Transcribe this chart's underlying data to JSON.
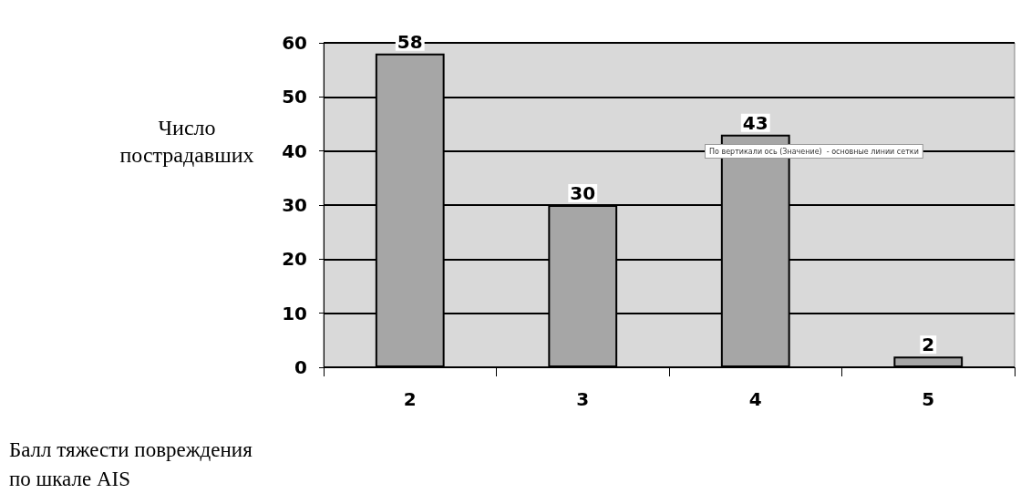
{
  "chart_data": {
    "type": "bar",
    "categories": [
      "2",
      "3",
      "4",
      "5"
    ],
    "values": [
      58,
      30,
      43,
      2
    ],
    "color": "#a6a6a6",
    "ylabel": "Число пострадавших",
    "ylim": [
      0,
      60
    ],
    "yticks": [
      0,
      10,
      20,
      30,
      40,
      50,
      60
    ],
    "grid": "y",
    "data_labels": true,
    "annotations": [
      "Балл тяжести повреждения по шкале AIS",
      "По вертикали ось (Значение)  - основные линии сетки"
    ]
  }
}
